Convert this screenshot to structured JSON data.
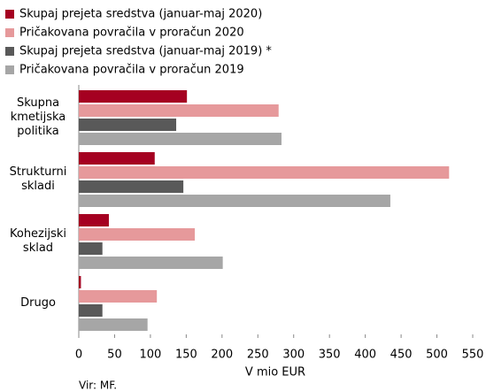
{
  "chart_data": {
    "type": "hbar",
    "categories": [
      "Skupna kmetijska politika",
      "Strukturni skladi",
      "Kohezijski sklad",
      "Drugo"
    ],
    "series": [
      {
        "name": "Skupaj prejeta sredstva (januar-maj 2020)",
        "color": "#a50021",
        "values": [
          151,
          106,
          42,
          3
        ]
      },
      {
        "name": "Pričakovana povračila v proračun 2020",
        "color": "#e6999b",
        "values": [
          279,
          517,
          162,
          109
        ]
      },
      {
        "name": "Skupaj prejeta sredstva (januar-maj 2019) *",
        "color": "#595959",
        "values": [
          136,
          146,
          33,
          33
        ]
      },
      {
        "name": "Pričakovana povračila v proračun 2019",
        "color": "#a6a6a6",
        "values": [
          283,
          435,
          201,
          96
        ]
      }
    ],
    "xlim": [
      0,
      550
    ],
    "xticks": [
      0,
      50,
      100,
      150,
      200,
      250,
      300,
      350,
      400,
      450,
      500,
      550
    ],
    "xlabel": "V mio EUR",
    "source": "Vir: MF.",
    "legend": "top"
  }
}
